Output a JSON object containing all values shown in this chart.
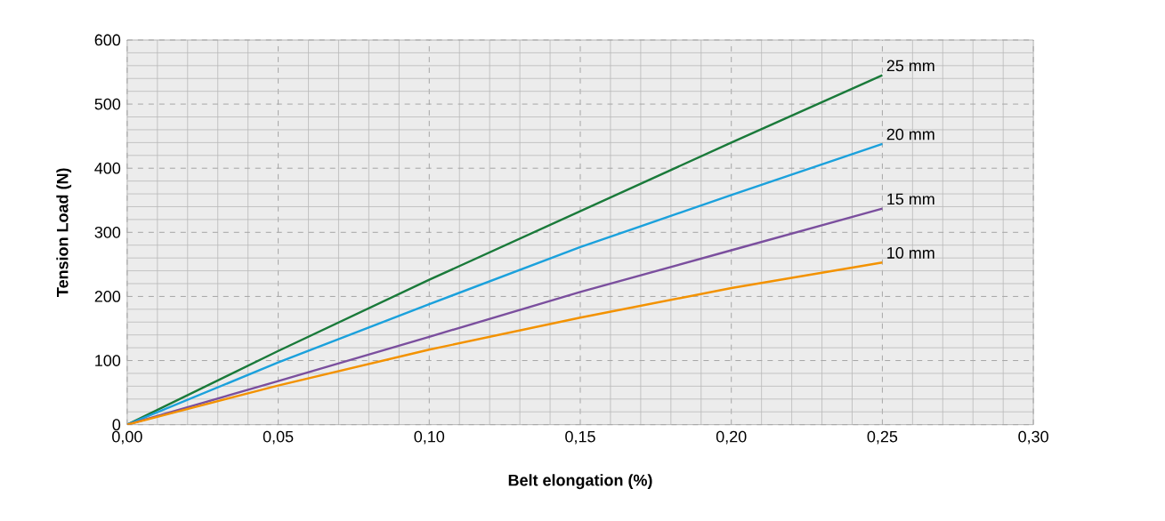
{
  "chart_data": {
    "type": "line",
    "xlabel": "Belt elongation (%)",
    "ylabel": "Tension Load (N)",
    "x": [
      0,
      0.05,
      0.1,
      0.15,
      0.2,
      0.25
    ],
    "series": [
      {
        "color": "#1a7a3a",
        "values": [
          0,
          115,
          226,
          333,
          440,
          545
        ]
      },
      {
        "color": "#1ba1dc",
        "values": [
          0,
          97,
          188,
          277,
          358,
          438
        ]
      },
      {
        "color": "#7b4f9e",
        "values": [
          0,
          68,
          137,
          207,
          272,
          337
        ]
      },
      {
        "color": "#f39200",
        "values": [
          0,
          61,
          117,
          167,
          213,
          253
        ]
      }
    ],
    "xlim": [
      0,
      0.3
    ],
    "xticks": [
      {
        "value": 0,
        "label": "0,00"
      },
      {
        "value": 0.05,
        "label": "0,05"
      },
      {
        "value": 0.1,
        "label": "0,10"
      },
      {
        "value": 0.15,
        "label": "0,15"
      },
      {
        "value": 0.2,
        "label": "0,20"
      },
      {
        "value": 0.25,
        "label": "0,25"
      },
      {
        "value": 0.3,
        "label": "0,30"
      }
    ],
    "ylim": [
      0,
      600
    ],
    "yticks": [
      0,
      100,
      200,
      300,
      400,
      500,
      600
    ],
    "grid": true,
    "marker": "none",
    "line_style": "solid",
    "annotations": [
      "25 mm",
      "20 mm",
      "15 mm",
      "10 mm"
    ]
  }
}
